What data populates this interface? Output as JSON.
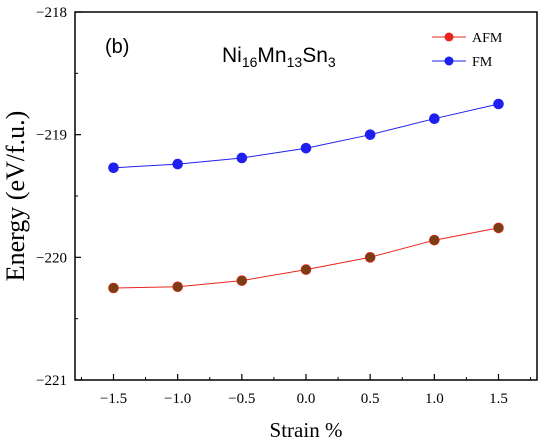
{
  "chart_data": {
    "type": "line",
    "panel_label": "(b)",
    "formula": {
      "parts": [
        {
          "text": "Ni",
          "sub": false
        },
        {
          "text": "16",
          "sub": true
        },
        {
          "text": "Mn",
          "sub": false
        },
        {
          "text": "13",
          "sub": true
        },
        {
          "text": "Sn",
          "sub": false
        },
        {
          "text": "3",
          "sub": true
        }
      ]
    },
    "xlabel": "Strain %",
    "ylabel": "Energy (eV/f.u.)",
    "x": [
      -1.5,
      -1.0,
      -0.5,
      0.0,
      0.5,
      1.0,
      1.5
    ],
    "x_ticks": [
      "-1.5",
      "-1.0",
      "-0.5",
      "0.0",
      "0.5",
      "1.0",
      "1.5"
    ],
    "y_ticks": [
      "-221",
      "-220",
      "-219",
      "-218"
    ],
    "xlim": [
      -1.8,
      1.8
    ],
    "ylim": [
      -221,
      -218
    ],
    "series": [
      {
        "name": "AFM",
        "color": "#e8261e",
        "marker_fill": "#7a3d14",
        "values": [
          -220.25,
          -220.24,
          -220.19,
          -220.1,
          -220.0,
          -219.86,
          -219.76
        ]
      },
      {
        "name": "FM",
        "color": "#1f1ff0",
        "marker_fill": "#1f1ff0",
        "values": [
          -219.27,
          -219.24,
          -219.19,
          -219.11,
          -219.0,
          -218.87,
          -218.75
        ]
      }
    ],
    "legend_position": "top-right",
    "grid": false
  }
}
